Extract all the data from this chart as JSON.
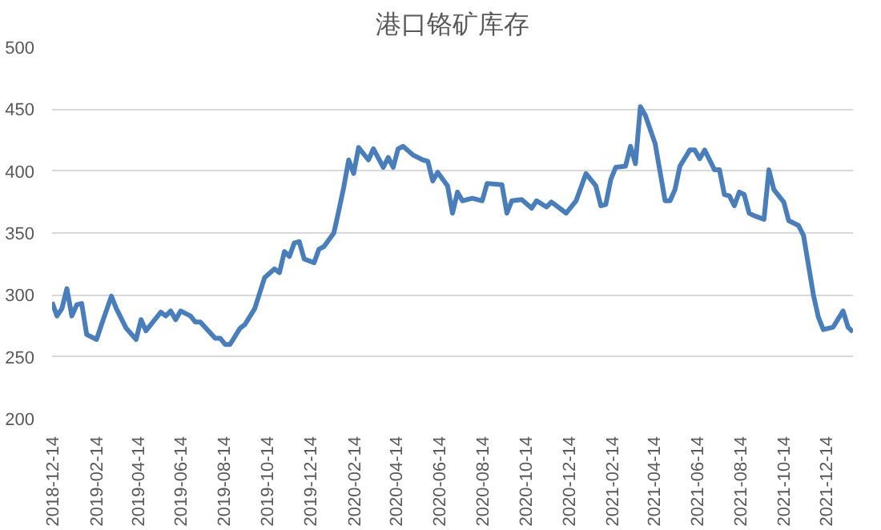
{
  "chart_data": {
    "type": "line",
    "title": "港口铬矿库存",
    "x": [
      "2018-12-14",
      "2018-12-21",
      "2018-12-28",
      "2019-01-04",
      "2019-01-11",
      "2019-01-18",
      "2019-01-25",
      "2019-02-01",
      "2019-02-15",
      "2019-02-22",
      "2019-03-08",
      "2019-03-15",
      "2019-03-29",
      "2019-04-12",
      "2019-04-19",
      "2019-04-26",
      "2019-05-17",
      "2019-05-24",
      "2019-05-31",
      "2019-06-07",
      "2019-06-14",
      "2019-06-28",
      "2019-07-05",
      "2019-07-12",
      "2019-08-02",
      "2019-08-09",
      "2019-08-16",
      "2019-08-23",
      "2019-09-06",
      "2019-09-13",
      "2019-09-27",
      "2019-10-11",
      "2019-10-25",
      "2019-11-01",
      "2019-11-08",
      "2019-11-15",
      "2019-11-22",
      "2019-11-29",
      "2019-12-06",
      "2019-12-20",
      "2019-12-27",
      "2020-01-03",
      "2020-01-17",
      "2020-01-24",
      "2020-01-31",
      "2020-02-07",
      "2020-02-14",
      "2020-02-21",
      "2020-03-06",
      "2020-03-13",
      "2020-03-27",
      "2020-04-03",
      "2020-04-10",
      "2020-04-17",
      "2020-04-24",
      "2020-05-08",
      "2020-05-22",
      "2020-05-29",
      "2020-06-05",
      "2020-06-12",
      "2020-06-26",
      "2020-07-03",
      "2020-07-10",
      "2020-07-17",
      "2020-07-31",
      "2020-08-14",
      "2020-08-21",
      "2020-09-11",
      "2020-09-18",
      "2020-09-25",
      "2020-10-09",
      "2020-10-23",
      "2020-10-30",
      "2020-11-13",
      "2020-11-20",
      "2020-11-27",
      "2020-12-11",
      "2020-12-25",
      "2021-01-08",
      "2021-01-22",
      "2021-01-29",
      "2021-02-05",
      "2021-02-12",
      "2021-02-19",
      "2021-03-05",
      "2021-03-12",
      "2021-03-19",
      "2021-03-26",
      "2021-04-02",
      "2021-04-16",
      "2021-04-30",
      "2021-05-07",
      "2021-05-14",
      "2021-05-21",
      "2021-06-04",
      "2021-06-11",
      "2021-06-18",
      "2021-06-25",
      "2021-07-09",
      "2021-07-16",
      "2021-07-23",
      "2021-07-30",
      "2021-08-06",
      "2021-08-13",
      "2021-08-20",
      "2021-08-27",
      "2021-09-03",
      "2021-09-17",
      "2021-09-24",
      "2021-10-01",
      "2021-10-15",
      "2021-10-22",
      "2021-11-05",
      "2021-11-12",
      "2021-11-19",
      "2021-11-26",
      "2021-12-03",
      "2021-12-10",
      "2021-12-24",
      "2022-01-07",
      "2022-01-14",
      "2022-01-21"
    ],
    "series": [
      {
        "color": "#4a7ebb",
        "values": [
          294,
          283,
          289,
          305,
          283,
          292,
          293,
          268,
          264,
          276,
          299,
          289,
          273,
          264,
          280,
          271,
          286,
          283,
          287,
          280,
          287,
          283,
          278,
          278,
          265,
          265,
          260,
          260,
          273,
          276,
          289,
          314,
          321,
          318,
          335,
          331,
          342,
          343,
          329,
          326,
          337,
          339,
          350,
          368,
          387,
          409,
          398,
          419,
          409,
          418,
          403,
          411,
          403,
          418,
          420,
          413,
          409,
          408,
          392,
          399,
          388,
          366,
          383,
          376,
          378,
          376,
          390,
          389,
          366,
          376,
          377,
          370,
          376,
          371,
          375,
          372,
          366,
          376,
          398,
          388,
          372,
          373,
          393,
          403,
          404,
          420,
          406,
          452,
          445,
          422,
          376,
          376,
          385,
          404,
          417,
          417,
          410,
          417,
          401,
          401,
          381,
          380,
          372,
          383,
          381,
          366,
          364,
          361,
          401,
          385,
          375,
          360,
          356,
          348,
          324,
          300,
          282,
          272,
          274,
          287,
          274,
          270
        ]
      }
    ],
    "xlim": [
      "2018-12-14",
      "2022-01-21"
    ],
    "xticks": [
      "2018-12-14",
      "2019-02-14",
      "2019-04-14",
      "2019-06-14",
      "2019-08-14",
      "2019-10-14",
      "2019-12-14",
      "2020-02-14",
      "2020-04-14",
      "2020-06-14",
      "2020-08-14",
      "2020-10-14",
      "2020-12-14",
      "2021-02-14",
      "2021-04-14",
      "2021-06-14",
      "2021-08-14",
      "2021-10-14",
      "2021-12-14"
    ],
    "ylim": [
      200,
      500
    ],
    "yticks": [
      200,
      250,
      300,
      350,
      400,
      450,
      500
    ],
    "grid": "y",
    "marker": "none",
    "line_style": "solid"
  }
}
